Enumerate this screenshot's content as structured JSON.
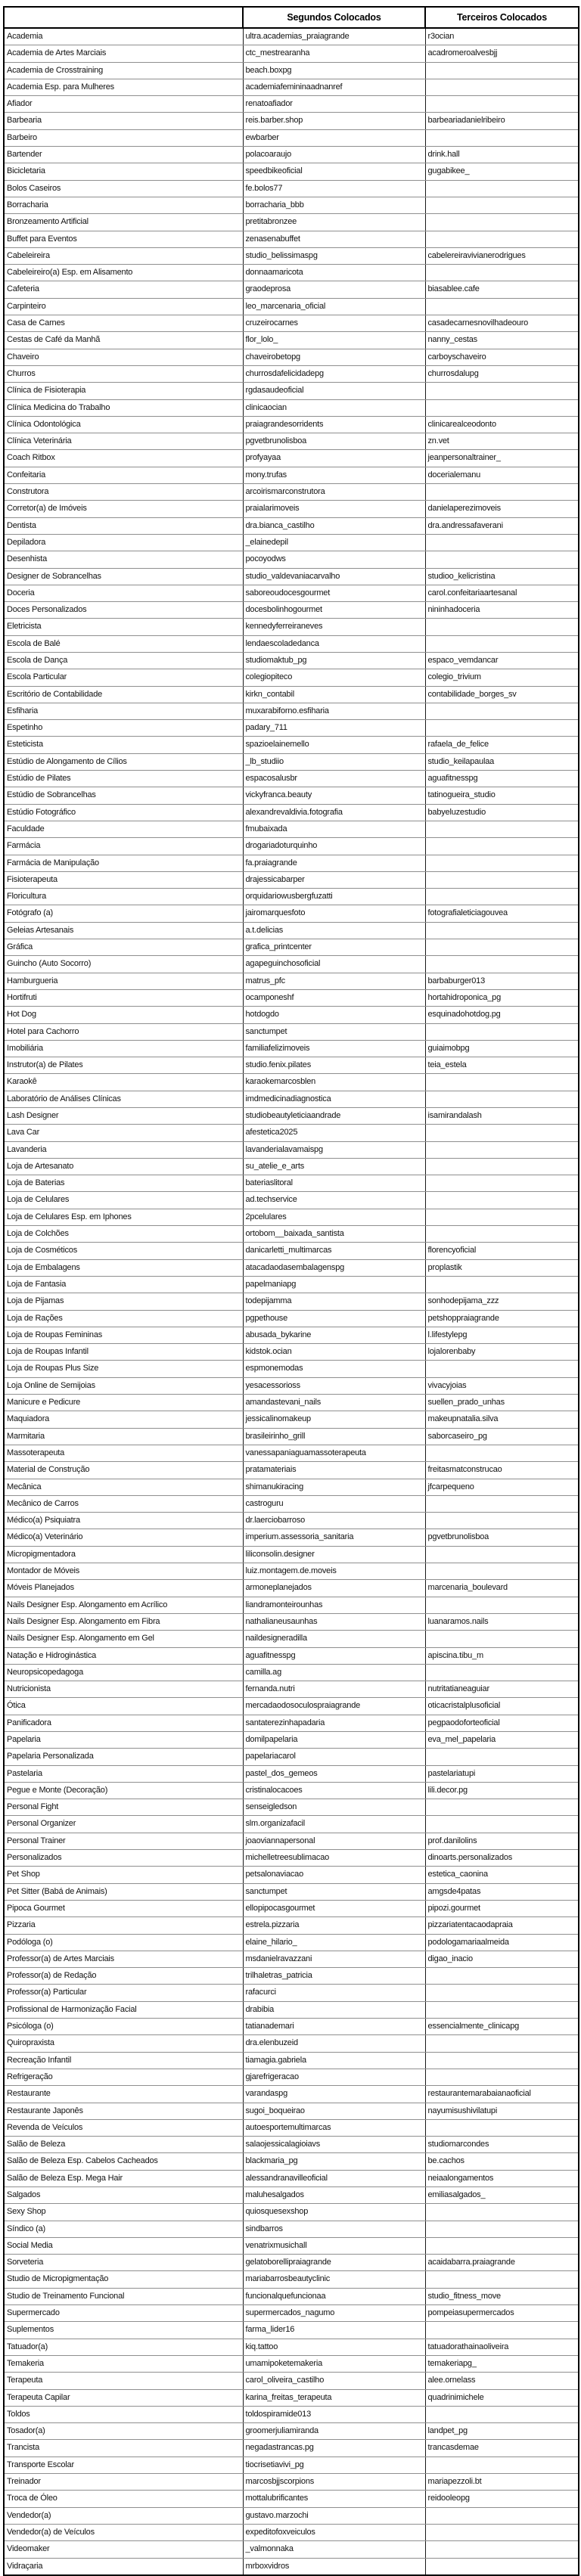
{
  "table": {
    "columns": [
      "",
      "Segundos Colocados",
      "Terceiros Colocados"
    ],
    "rows": [
      [
        "Academia",
        "ultra.academias_praiagrande",
        "r3ocian"
      ],
      [
        "Academia de Artes Marciais",
        "ctc_mestrearanha",
        "acadromeroalvesbjj"
      ],
      [
        "Academia de Crosstraining",
        "beach.boxpg",
        ""
      ],
      [
        "Academia Esp. para Mulheres",
        "academiafemininaadnanref",
        ""
      ],
      [
        "Afiador",
        "renatoafiador",
        ""
      ],
      [
        "Barbearia",
        "reis.barber.shop",
        "barbeariadanielribeiro"
      ],
      [
        "Barbeiro",
        "ewbarber",
        ""
      ],
      [
        "Bartender",
        "polacoaraujo",
        "drink.hall"
      ],
      [
        "Bicicletaria",
        "speedbikeoficial",
        "gugabikee_"
      ],
      [
        "Bolos Caseiros",
        "fe.bolos77",
        ""
      ],
      [
        "Borracharia",
        "borracharia_bbb",
        ""
      ],
      [
        "Bronzeamento Artificial",
        "pretitabronzee",
        ""
      ],
      [
        "Buffet para Eventos",
        "zenasenabuffet",
        ""
      ],
      [
        "Cabeleireira",
        "studio_belissimaspg",
        "cabelereiravivianerodrigues"
      ],
      [
        "Cabeleireiro(a) Esp. em Alisamento",
        "donnaamaricota",
        ""
      ],
      [
        "Cafeteria",
        "graodeprosa",
        "biasablee.cafe"
      ],
      [
        "Carpinteiro",
        "leo_marcenaria_oficial",
        ""
      ],
      [
        "Casa de Carnes",
        "cruzeirocarnes",
        "casadecarnesnovilhadeouro"
      ],
      [
        "Cestas de Café da Manhã",
        "flor_lolo_",
        "nanny_cestas"
      ],
      [
        "Chaveiro",
        "chaveirobetopg",
        "carboyschaveiro"
      ],
      [
        "Churros",
        "churrosdafelicidadepg",
        "churrosdalupg"
      ],
      [
        "Clínica de Fisioterapia",
        "rgdasaudeoficial",
        ""
      ],
      [
        "Clínica Medicina do Trabalho",
        "clinicaocian",
        ""
      ],
      [
        "Clínica Odontológica",
        "praiagrandesorridents",
        "clinicarealceodonto"
      ],
      [
        "Clínica Veterinária",
        "pgvetbrunolisboa",
        "zn.vet"
      ],
      [
        "Coach Ritbox",
        "profyayaa",
        "jeanpersonaltrainer_"
      ],
      [
        "Confeitaria",
        "mony.trufas",
        "docerialemanu"
      ],
      [
        "Construtora",
        "arcoirismarconstrutora",
        ""
      ],
      [
        "Corretor(a) de Imóveis",
        "praialarimoveis",
        "danielaperezimoveis"
      ],
      [
        "Dentista",
        "dra.bianca_castilho",
        "dra.andressafaverani"
      ],
      [
        "Depiladora",
        "_elainedepil",
        ""
      ],
      [
        "Desenhista",
        "pocoyodws",
        ""
      ],
      [
        "Designer de Sobrancelhas",
        "studio_valdevaniacarvalho",
        "studioo_kelicristina"
      ],
      [
        "Doceria",
        "saboreoudocesgourmet",
        "carol.confeitariaartesanal"
      ],
      [
        "Doces Personalizados",
        "docesbolinhogourmet",
        "nininhadoceria"
      ],
      [
        "Eletricista",
        "kennedyferreiraneves",
        ""
      ],
      [
        "Escola de Balé",
        "lendaescoladedanca",
        ""
      ],
      [
        "Escola de Dança",
        "studiomaktub_pg",
        "espaco_vemdancar"
      ],
      [
        "Escola Particular",
        "colegiopiteco",
        "colegio_trivium"
      ],
      [
        "Escritório de Contabilidade",
        "kirkn_contabil",
        "contabilidade_borges_sv"
      ],
      [
        "Esfiharia",
        "muxarabiforno.esfiharia",
        ""
      ],
      [
        "Espetinho",
        "padary_711",
        ""
      ],
      [
        "Esteticista",
        "spazioelainemello",
        "rafaela_de_felice"
      ],
      [
        "Estúdio de Alongamento de Cílios",
        "_lb_studiio",
        "studio_keilapaulaa"
      ],
      [
        "Estúdio de Pilates",
        "espacosalusbr",
        "aguafitnesspg"
      ],
      [
        "Estúdio de Sobrancelhas",
        "vickyfranca.beauty",
        "tatinogueira_studio"
      ],
      [
        "Estúdio Fotográfico",
        "alexandrevaldivia.fotografia",
        "babyeluzestudio"
      ],
      [
        "Faculdade",
        "fmubaixada",
        ""
      ],
      [
        "Farmácia",
        "drogariadoturquinho",
        ""
      ],
      [
        "Farmácia de Manipulação",
        "fa.praiagrande",
        ""
      ],
      [
        "Fisioterapeuta",
        "drajessicabarper",
        ""
      ],
      [
        "Floricultura",
        "orquidariowusbergfuzatti",
        ""
      ],
      [
        "Fotógrafo (a)",
        "jairomarquesfoto",
        "fotografialeticiagouvea"
      ],
      [
        "Geleias Artesanais",
        "a.t.delicias",
        ""
      ],
      [
        "Gráfica",
        "grafica_printcenter",
        ""
      ],
      [
        "Guincho (Auto Socorro)",
        "agapeguinchosoficial",
        ""
      ],
      [
        "Hamburgueria",
        "matrus_pfc",
        "barbaburger013"
      ],
      [
        "Hortifruti",
        "ocamponeshf",
        "hortahidroponica_pg"
      ],
      [
        "Hot Dog",
        "hotdogdo",
        "esquinadohotdog.pg"
      ],
      [
        "Hotel para Cachorro",
        "sanctumpet",
        ""
      ],
      [
        "Imobiliária",
        "familiafelizimoveis",
        "guiaimobpg"
      ],
      [
        "Instrutor(a) de Pilates",
        "studio.fenix.pilates",
        "teia_estela"
      ],
      [
        "Karaokê",
        "karaokemarcosblen",
        ""
      ],
      [
        "Laboratório de Análises Clínicas",
        "imdmedicinadiagnostica",
        ""
      ],
      [
        "Lash Designer",
        "studiobeautyleticiaandrade",
        "isamirandalash"
      ],
      [
        "Lava Car",
        "afestetica2025",
        ""
      ],
      [
        "Lavanderia",
        "lavanderialavamaispg",
        ""
      ],
      [
        "Loja de Artesanato",
        "su_atelie_e_arts",
        ""
      ],
      [
        "Loja de Baterias",
        "bateriaslitoral",
        ""
      ],
      [
        "Loja de Celulares",
        "ad.techservice",
        ""
      ],
      [
        "Loja de Celulares Esp. em Iphones",
        "2pcelulares",
        ""
      ],
      [
        "Loja de Colchões",
        "ortobom__baixada_santista",
        ""
      ],
      [
        "Loja de Cosméticos",
        "danicarletti_multimarcas",
        "florencyoficial"
      ],
      [
        "Loja de Embalagens",
        "atacadaodasembalagenspg",
        "proplastik"
      ],
      [
        "Loja de Fantasia",
        "papelmaniapg",
        ""
      ],
      [
        "Loja de Pijamas",
        "todepijamma",
        "sonhodepijama_zzz"
      ],
      [
        "Loja de Rações",
        "pgpethouse",
        "petshoppraiagrande"
      ],
      [
        "Loja de Roupas Femininas",
        "abusada_bykarine",
        "l.lifestylepg"
      ],
      [
        "Loja de Roupas Infantil",
        "kidstok.ocian",
        "lojalorenbaby"
      ],
      [
        "Loja de Roupas Plus Size",
        "espmonemodas",
        ""
      ],
      [
        "Loja Online de Semijoias",
        "yesacessorioss",
        "vivacyjoias"
      ],
      [
        "Manicure e Pedicure",
        "amandastevani_nails",
        "suellen_prado_unhas"
      ],
      [
        "Maquiadora",
        "jessicalinomakeup",
        "makeupnatalia.silva"
      ],
      [
        "Marmitaria",
        "brasileirinho_grill",
        "saborcaseiro_pg"
      ],
      [
        "Massoterapeuta",
        "vanessapaniaguamassoterapeuta",
        ""
      ],
      [
        "Material de Construção",
        "pratamateriais",
        "freitasmatconstrucao"
      ],
      [
        "Mecânica",
        "shimanukiracing",
        "jfcarpequeno"
      ],
      [
        "Mecânico de Carros",
        "castroguru",
        ""
      ],
      [
        "Médico(a) Psiquiatra",
        "dr.laerciobarroso",
        ""
      ],
      [
        "Médico(a) Veterinário",
        "imperium.assessoria_sanitaria",
        "pgvetbrunolisboa"
      ],
      [
        "Micropigmentadora",
        "liliconsolin.designer",
        ""
      ],
      [
        "Montador de Móveis",
        "luiz.montagem.de.moveis",
        ""
      ],
      [
        "Móveis Planejados",
        "armoneplanejados",
        "marcenaria_boulevard"
      ],
      [
        "Nails Designer Esp. Alongamento em Acrílico",
        "liandramonteirounhas",
        ""
      ],
      [
        "Nails Designer Esp. Alongamento em Fibra",
        "nathalianeusaunhas",
        "luanaramos.nails"
      ],
      [
        "Nails Designer Esp. Alongamento em Gel",
        "naildesigneradilla",
        ""
      ],
      [
        "Natação e Hidroginástica",
        "aguafitnesspg",
        "apiscina.tibu_m"
      ],
      [
        "Neuropsicopedagoga",
        "camilla.ag",
        ""
      ],
      [
        "Nutricionista",
        "fernanda.nutri",
        "nutritatianeaguiar"
      ],
      [
        "Ótica",
        "mercadaodosoculospraiagrande",
        "oticacristalplusoficial"
      ],
      [
        "Panificadora",
        "santaterezinhapadaria",
        "pegpaodoforteoficial"
      ],
      [
        "Papelaria",
        "domilpapelaria",
        "eva_mel_papelaria"
      ],
      [
        "Papelaria Personalizada",
        "papelariacarol",
        ""
      ],
      [
        "Pastelaria",
        "pastel_dos_gemeos",
        "pastelariatupi"
      ],
      [
        "Pegue e Monte (Decoração)",
        "cristinalocacoes",
        "lili.decor.pg"
      ],
      [
        "Personal Fight",
        "senseigledson",
        ""
      ],
      [
        "Personal Organizer",
        "slm.organizafacil",
        ""
      ],
      [
        "Personal Trainer",
        "joaoviannapersonal",
        "prof.danilolins"
      ],
      [
        "Personalizados",
        "michelletreesublimacao",
        "dinoarts.personalizados"
      ],
      [
        "Pet Shop",
        "petsalonaviacao",
        "estetica_caonina"
      ],
      [
        "Pet Sitter (Babá de Animais)",
        "sanctumpet",
        "amgsde4patas"
      ],
      [
        "Pipoca Gourmet",
        "ellopipocasgourmet",
        "pipozi.gourmet"
      ],
      [
        "Pizzaria",
        "estrela.pizzaria",
        "pizzariatentacaodapraia"
      ],
      [
        "Podóloga (o)",
        "elaine_hilario_",
        "podologamariaalmeida"
      ],
      [
        "Professor(a) de Artes Marciais",
        "msdanielravazzani",
        "digao_inacio"
      ],
      [
        "Professor(a) de Redação",
        "trilhaletras_patricia",
        ""
      ],
      [
        "Professor(a) Particular",
        "rafacurci",
        ""
      ],
      [
        "Profissional de Harmonização Facial",
        "drabibia",
        ""
      ],
      [
        "Psicóloga (o)",
        "tatianademari",
        "essencialmente_clinicapg"
      ],
      [
        "Quiropraxista",
        "dra.elenbuzeid",
        ""
      ],
      [
        "Recreação Infantil",
        "tiamagia.gabriela",
        ""
      ],
      [
        "Refrigeração",
        "gjarefrigeracao",
        ""
      ],
      [
        "Restaurante",
        "varandaspg",
        "restaurantemarabaianaoficial"
      ],
      [
        "Restaurante Japonês",
        "sugoi_boqueirao",
        "nayumisushivilatupi"
      ],
      [
        "Revenda de Veículos",
        "autoesportemultimarcas",
        ""
      ],
      [
        "Salão de Beleza",
        "salaojessicalagioiavs",
        "studiomarcondes"
      ],
      [
        "Salão de Beleza Esp. Cabelos Cacheados",
        "blackmaria_pg",
        "be.cachos"
      ],
      [
        "Salão de Beleza Esp. Mega Hair",
        "alessandranavilleoficial",
        "neiaalongamentos"
      ],
      [
        "Salgados",
        "maluhesalgados",
        "emiliasalgados_"
      ],
      [
        "Sexy Shop",
        "quiosquesexshop",
        ""
      ],
      [
        "Síndico (a)",
        "sindbarros",
        ""
      ],
      [
        "Social Media",
        "venatrixmusichall",
        ""
      ],
      [
        "Sorveteria",
        "gelatoborellipraiagrande",
        "acaidabarra.praiagrande"
      ],
      [
        "Studio de Micropigmentação",
        "mariabarrosbeautyclinic",
        ""
      ],
      [
        "Studio de Treinamento Funcional",
        "funcionalquefuncionaa",
        "studio_fitness_move"
      ],
      [
        "Supermercado",
        "supermercados_nagumo",
        "pompeiasupermercados"
      ],
      [
        "Suplementos",
        "farma_lider16",
        ""
      ],
      [
        "Tatuador(a)",
        "kiq.tattoo",
        "tatuadorathainaoliveira"
      ],
      [
        "Temakeria",
        "umamipoketemakeria",
        "temakeriapg_"
      ],
      [
        "Terapeuta",
        "carol_oliveira_castilho",
        "alee.ornelass"
      ],
      [
        "Terapeuta Capilar",
        "karina_freitas_terapeuta",
        "quadrinimichele"
      ],
      [
        "Toldos",
        "toldospiramide013",
        ""
      ],
      [
        "Tosador(a)",
        "groomerjuliamiranda",
        "landpet_pg"
      ],
      [
        "Trancista",
        "negadastrancas.pg",
        "trancasdemae"
      ],
      [
        "Transporte Escolar",
        "tiocrisetiavivi_pg",
        ""
      ],
      [
        "Treinador",
        "marcosbjjscorpions",
        "mariapezzoli.bt"
      ],
      [
        "Troca de Óleo",
        "mottalubrificantes",
        "reidooleopg"
      ],
      [
        "Vendedor(a)",
        "gustavo.marzochi",
        ""
      ],
      [
        "Vendedor(a) de Veículos",
        "expeditofoxveiculos",
        ""
      ],
      [
        "Videomaker",
        "_valmonnaka",
        ""
      ],
      [
        "Vidraçaria",
        "mrboxvidros",
        ""
      ]
    ]
  }
}
